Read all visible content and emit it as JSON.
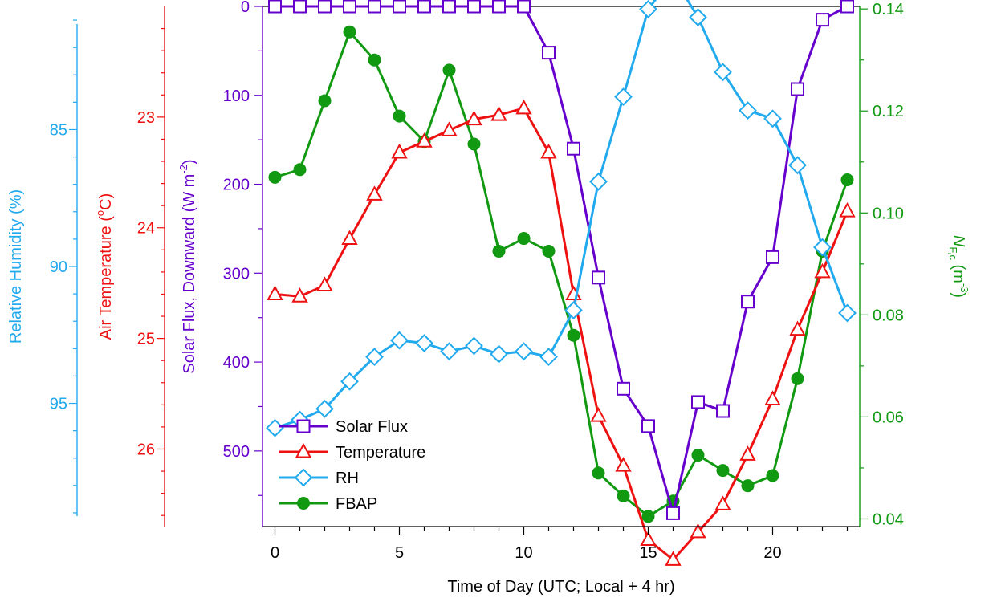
{
  "chart_data": {
    "type": "line",
    "x": [
      0,
      1,
      2,
      3,
      4,
      5,
      6,
      7,
      8,
      9,
      10,
      11,
      12,
      13,
      14,
      15,
      16,
      17,
      18,
      19,
      20,
      21,
      22,
      23
    ],
    "xlabel": "Time of Day (UTC; Local + 4 hr)",
    "xlim": [
      -0.5,
      23.5
    ],
    "x_ticks": [
      0,
      5,
      10,
      15,
      20
    ],
    "axes": {
      "solar": {
        "label_main": "Solar Flux, Downward (W m",
        "label_sup": "-2",
        "label_end": ")",
        "range": [
          0,
          585
        ],
        "inverted": true,
        "ticks": [
          0,
          100,
          200,
          300,
          400,
          500
        ],
        "minor_ticks": [
          50,
          150,
          250,
          350,
          450,
          550
        ],
        "color": "#6600CC"
      },
      "temperature": {
        "label_main": "Air Temperature (",
        "label_sup": "o",
        "label_end": "C)",
        "range": [
          22.0,
          26.7
        ],
        "inverted": true,
        "ticks": [
          23,
          24,
          25,
          26
        ],
        "minor_ticks": [
          22.2,
          22.4,
          22.6,
          22.8,
          23.2,
          23.4,
          23.6,
          23.8,
          24.2,
          24.4,
          24.6,
          24.8,
          25.2,
          25.4,
          25.6,
          25.8,
          26.2,
          26.4,
          26.6
        ],
        "color": "#EE1111"
      },
      "rh": {
        "label": "Relative Humidity (%)",
        "range": [
          99.5,
          80.5
        ],
        "ticks": [
          95,
          90,
          85
        ],
        "minor_ticks": [
          99,
          98,
          97,
          96,
          94,
          93,
          92,
          91,
          89,
          88,
          87,
          86,
          84,
          83,
          82,
          81
        ],
        "color": "#22AAEE"
      },
      "fbap": {
        "label_main": "N",
        "label_sub": "F,c",
        "label_units": " (m",
        "label_sup": "-3",
        "label_end": ")",
        "range": [
          0.0385,
          0.1405
        ],
        "ticks": [
          0.04,
          0.06,
          0.08,
          0.1,
          0.12,
          0.14
        ],
        "tick_labels": [
          "0.04",
          "0.06",
          "0.08",
          "0.10",
          "0.12",
          "0.14"
        ],
        "minor_ticks": [
          0.05,
          0.07,
          0.09,
          0.11,
          0.13
        ],
        "color": "#119911"
      }
    },
    "series": [
      {
        "name": "Solar Flux",
        "axis": "solar",
        "marker": "square",
        "color": "#6600CC",
        "values": [
          0,
          0,
          0,
          0,
          0,
          0,
          0,
          0,
          0,
          0,
          0,
          52,
          160,
          305,
          430,
          472,
          570,
          445,
          455,
          332,
          282,
          93,
          15,
          0
        ]
      },
      {
        "name": "Temperature",
        "axis": "temperature",
        "marker": "triangle",
        "color": "#EE1111",
        "values": [
          24.6,
          24.62,
          24.52,
          24.1,
          23.7,
          23.32,
          23.22,
          23.12,
          23.02,
          22.98,
          22.92,
          23.32,
          24.6,
          25.7,
          26.15,
          26.82,
          27.0,
          26.75,
          26.5,
          26.05,
          25.55,
          24.92,
          24.4,
          23.85
        ]
      },
      {
        "name": "RH",
        "axis": "rh",
        "marker": "diamond",
        "color": "#22AAEE",
        "values": [
          95.9,
          95.6,
          95.2,
          94.2,
          93.3,
          92.7,
          92.8,
          93.1,
          92.9,
          93.2,
          93.1,
          93.3,
          91.6,
          86.9,
          83.8,
          80.6,
          79.4,
          80.9,
          82.9,
          84.3,
          84.6,
          86.3,
          89.3,
          91.7
        ]
      },
      {
        "name": "FBAP",
        "axis": "fbap",
        "marker": "circle",
        "color": "#119911",
        "values": [
          0.107,
          0.1085,
          0.122,
          0.1355,
          0.13,
          0.119,
          0.114,
          0.128,
          0.1135,
          0.0925,
          0.095,
          0.0925,
          0.076,
          0.049,
          0.0445,
          0.0405,
          0.0435,
          0.0525,
          0.0495,
          0.0465,
          0.0485,
          0.0675,
          0.0925,
          0.1065
        ]
      }
    ],
    "legend": {
      "placement": "bottom-left",
      "entries": [
        "Solar Flux",
        "Temperature",
        "RH",
        "FBAP"
      ]
    },
    "grid": false
  }
}
